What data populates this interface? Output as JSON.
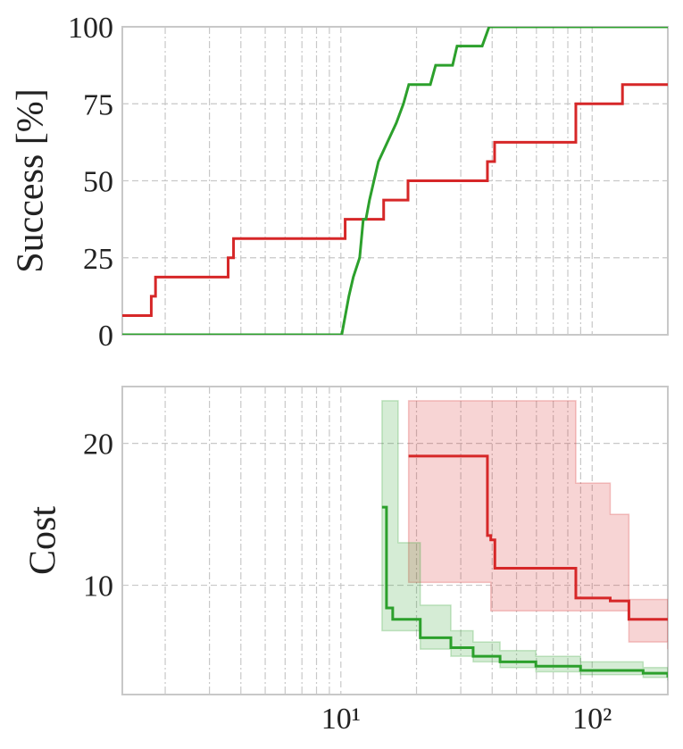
{
  "chart_data": [
    {
      "type": "line",
      "ylabel": "Success [%]",
      "xscale": "log",
      "grid": true,
      "xlim": [
        1.35,
        200
      ],
      "xticks": [
        10,
        100
      ],
      "xminor_ticks": [
        2,
        3,
        4,
        5,
        6,
        7,
        8,
        9,
        20,
        30,
        40,
        50,
        60,
        70,
        80,
        90
      ],
      "ylim": [
        0,
        100
      ],
      "yticks": [
        0,
        25,
        50,
        75,
        100
      ],
      "series": [
        {
          "color": "#d62728",
          "drawstyle": "steps-post",
          "x": [
            1.35,
            1.76,
            1.83,
            3.56,
            3.74,
            10.4,
            14.8,
            18.5,
            38.3,
            40.9,
            86.1,
            132,
            200
          ],
          "values": [
            6.25,
            12.5,
            18.75,
            25,
            31.25,
            37.5,
            43.75,
            50,
            56.25,
            62.5,
            75,
            81.25,
            81.25
          ]
        },
        {
          "color": "#2ca02c",
          "drawstyle": "default",
          "x": [
            1.35,
            10.08,
            10.76,
            11.21,
            11.88,
            12.28,
            12.58,
            13.0,
            13.54,
            14.11,
            15.31,
            16.62,
            17.74,
            18.64,
            22.7,
            23.83,
            27.83,
            29.0,
            36.5,
            38.9,
            200
          ],
          "values": [
            0,
            0,
            12.5,
            18.75,
            25,
            37.5,
            37.5,
            43.75,
            50,
            56.25,
            62.5,
            68.75,
            75,
            81.25,
            81.25,
            87.5,
            87.5,
            93.75,
            93.75,
            100,
            100
          ]
        }
      ]
    },
    {
      "type": "line",
      "ylabel": "Cost",
      "xscale": "log",
      "grid": true,
      "xlim": [
        1.35,
        200
      ],
      "xticks": [
        {
          "value": 10,
          "label": "10¹"
        },
        {
          "value": 100,
          "label": "10²"
        }
      ],
      "xminor_ticks": [
        2,
        3,
        4,
        5,
        6,
        7,
        8,
        9,
        20,
        30,
        40,
        50,
        60,
        70,
        80,
        90
      ],
      "ylim": [
        2.3,
        24
      ],
      "yticks": [
        10,
        20
      ],
      "series": [
        {
          "color": "#d62728",
          "drawstyle": "steps-post",
          "x": [
            18.6,
            38.3,
            39.5,
            41.0,
            86.1,
            100,
            118,
            140,
            200
          ],
          "values": [
            19.1,
            13.5,
            13.2,
            11.2,
            9.1,
            9.1,
            8.9,
            7.6,
            7.6
          ],
          "lower": [
            10.2,
            10.2,
            8.2,
            8.2,
            8.2,
            8.2,
            8.2,
            6.0,
            5.5
          ],
          "upper": [
            23,
            23,
            23,
            23,
            17.2,
            17.2,
            15.0,
            9.0,
            9.0
          ]
        },
        {
          "color": "#2ca02c",
          "drawstyle": "steps-post",
          "x": [
            14.58,
            15.19,
            16.08,
            16.9,
            20.7,
            27.4,
            33.6,
            43.0,
            59.7,
            89.9,
            159.5,
            200
          ],
          "values": [
            15.5,
            8.4,
            7.6,
            7.6,
            6.3,
            5.6,
            5.0,
            4.6,
            4.3,
            4.0,
            3.8,
            3.5
          ],
          "lower": [
            6.8,
            6.8,
            6.8,
            6.8,
            5.5,
            5.0,
            4.6,
            4.2,
            3.9,
            3.7,
            3.5,
            3.3
          ],
          "upper": [
            23,
            23,
            23,
            13.0,
            8.6,
            6.8,
            6.0,
            5.4,
            5.0,
            4.6,
            4.2,
            3.8
          ]
        }
      ]
    }
  ]
}
